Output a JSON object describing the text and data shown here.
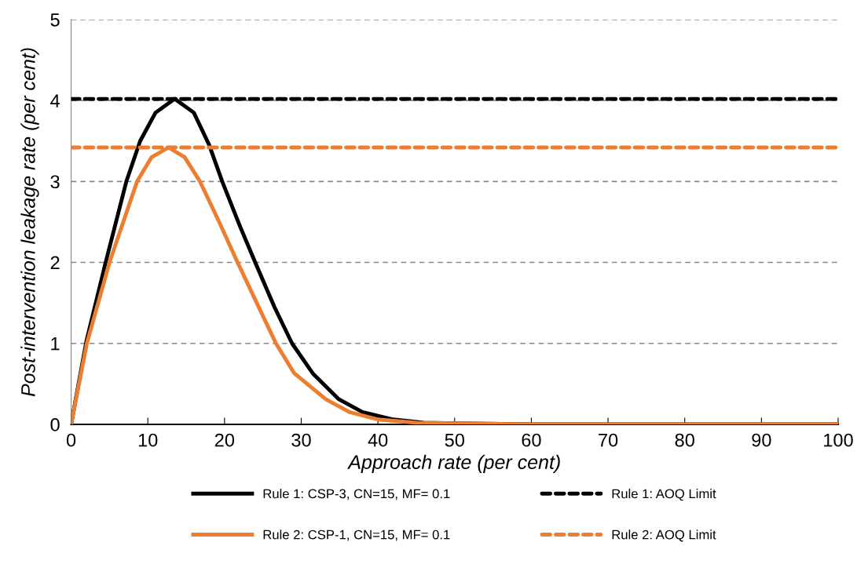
{
  "chart_data": {
    "type": "line",
    "xlabel": "Approach rate (per cent)",
    "ylabel": "Post-intervention leakage rate (per cent)",
    "xlim": [
      0,
      100
    ],
    "ylim": [
      0,
      5
    ],
    "xticks": [
      0,
      10,
      20,
      30,
      40,
      50,
      60,
      70,
      80,
      90,
      100
    ],
    "yticks": [
      0,
      1,
      2,
      3,
      4,
      5
    ],
    "grid": "y",
    "legend": "bottom",
    "marker": "none",
    "line_style": "solid",
    "series": [
      {
        "name": "Rule 1: CSP-3, CN=15, MF= 0.1",
        "color": "#000000",
        "x": [
          0,
          2,
          4.5,
          7.2,
          9,
          11,
          13.5,
          16,
          18,
          19.7,
          22,
          24,
          26.5,
          28.8,
          31.5,
          34.9,
          38,
          42,
          46,
          52,
          60,
          100
        ],
        "values": [
          0,
          1.03,
          2,
          3,
          3.5,
          3.85,
          4.02,
          3.85,
          3.45,
          3,
          2.45,
          2,
          1.45,
          1,
          0.63,
          0.31,
          0.15,
          0.06,
          0.02,
          0.01,
          0,
          0
        ]
      },
      {
        "name": "Rule 2: CSP-1, CN=15, MF= 0.1",
        "color": "#ed7d31",
        "x": [
          0,
          2.05,
          5,
          8.6,
          10.5,
          12.7,
          14.8,
          16.8,
          19.3,
          21.7,
          24.2,
          26.7,
          29.1,
          33.2,
          36.3,
          40,
          45,
          52,
          60,
          100
        ],
        "values": [
          0,
          1,
          2,
          3,
          3.3,
          3.42,
          3.3,
          3,
          2.5,
          2,
          1.5,
          1,
          0.63,
          0.31,
          0.15,
          0.06,
          0.02,
          0.01,
          0,
          0
        ]
      }
    ],
    "ref_lines": [
      {
        "axis": "y",
        "value": 4.02,
        "label": "Rule 1: AOQ Limit",
        "color": "#000000",
        "line_style": "dashed"
      },
      {
        "axis": "y",
        "value": 3.42,
        "label": "Rule 2: AOQ Limit",
        "color": "#ed7d31",
        "line_style": "dashed"
      }
    ]
  }
}
